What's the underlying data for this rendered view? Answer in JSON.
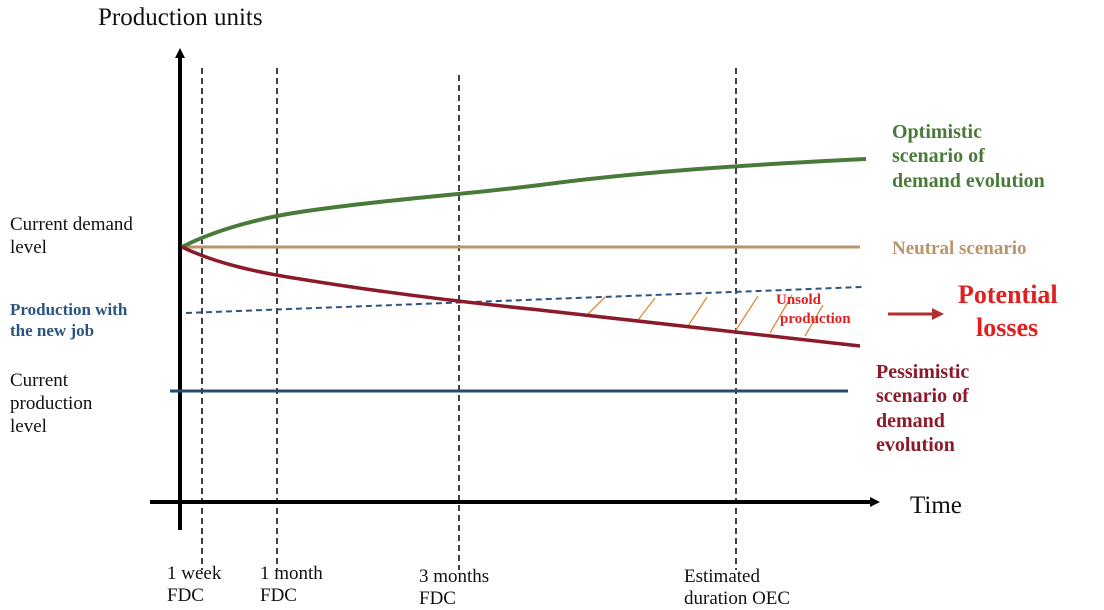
{
  "axes": {
    "y_title": "Production units",
    "x_title": "Time"
  },
  "left_labels": {
    "current_demand": [
      "Current demand",
      "level"
    ],
    "production_new_job": [
      "Production with",
      "the new job"
    ],
    "current_production": [
      "Current",
      "production",
      "level"
    ]
  },
  "right_labels": {
    "optimistic": [
      "Optimistic",
      "scenario of",
      "demand evolution"
    ],
    "neutral": "Neutral scenario",
    "pessimistic": [
      "Pessimistic",
      "scenario of",
      "demand",
      "evolution"
    ]
  },
  "annotations": {
    "unsold": [
      "Unsold",
      "production"
    ],
    "potential_losses": [
      "Potential",
      "losses"
    ]
  },
  "time_markers": [
    {
      "line1": "1 week",
      "line2": "FDC"
    },
    {
      "line1": "1 month",
      "line2": "FDC"
    },
    {
      "line1": "3 months",
      "line2": "FDC"
    },
    {
      "line1": "Estimated",
      "line2": "duration OEC"
    }
  ],
  "colors": {
    "optimistic": "#4a7a3a",
    "neutral": "#b8956a",
    "pessimistic": "#8b1a2a",
    "new_job": "#2a5580",
    "current_production": "#1f4e6e",
    "unsold_hatch": "#e08a3a",
    "losses": "#e02020",
    "arrow": "#b03030"
  }
}
